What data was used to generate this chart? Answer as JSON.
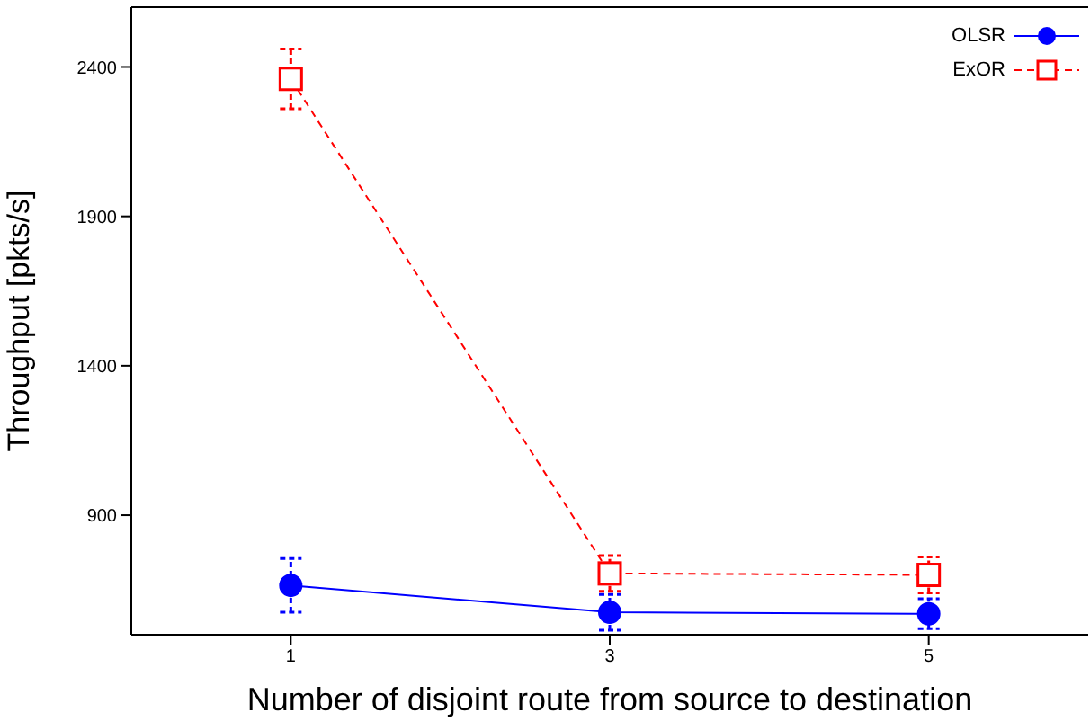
{
  "chart_data": {
    "type": "line",
    "xlabel": "Number of disjoint route from source to destination",
    "ylabel": "Throughput [pkts/s]",
    "x": [
      1,
      3,
      5
    ],
    "series": [
      {
        "name": "OLSR",
        "color": "#0000ff",
        "values": [
          665,
          575,
          570
        ],
        "errors": [
          90,
          60,
          50
        ],
        "marker": "circle",
        "line_style": "solid"
      },
      {
        "name": "ExOR",
        "color": "#ff0000",
        "values": [
          2360,
          705,
          700
        ],
        "errors": [
          100,
          60,
          60
        ],
        "marker": "square",
        "line_style": "dashed"
      }
    ],
    "xlim": [
      0,
      6
    ],
    "xticks": [
      1,
      3,
      5
    ],
    "ylim": [
      500,
      2600
    ],
    "yticks": [
      900,
      1400,
      1900,
      2400
    ],
    "legend": "top right",
    "grid": false
  }
}
